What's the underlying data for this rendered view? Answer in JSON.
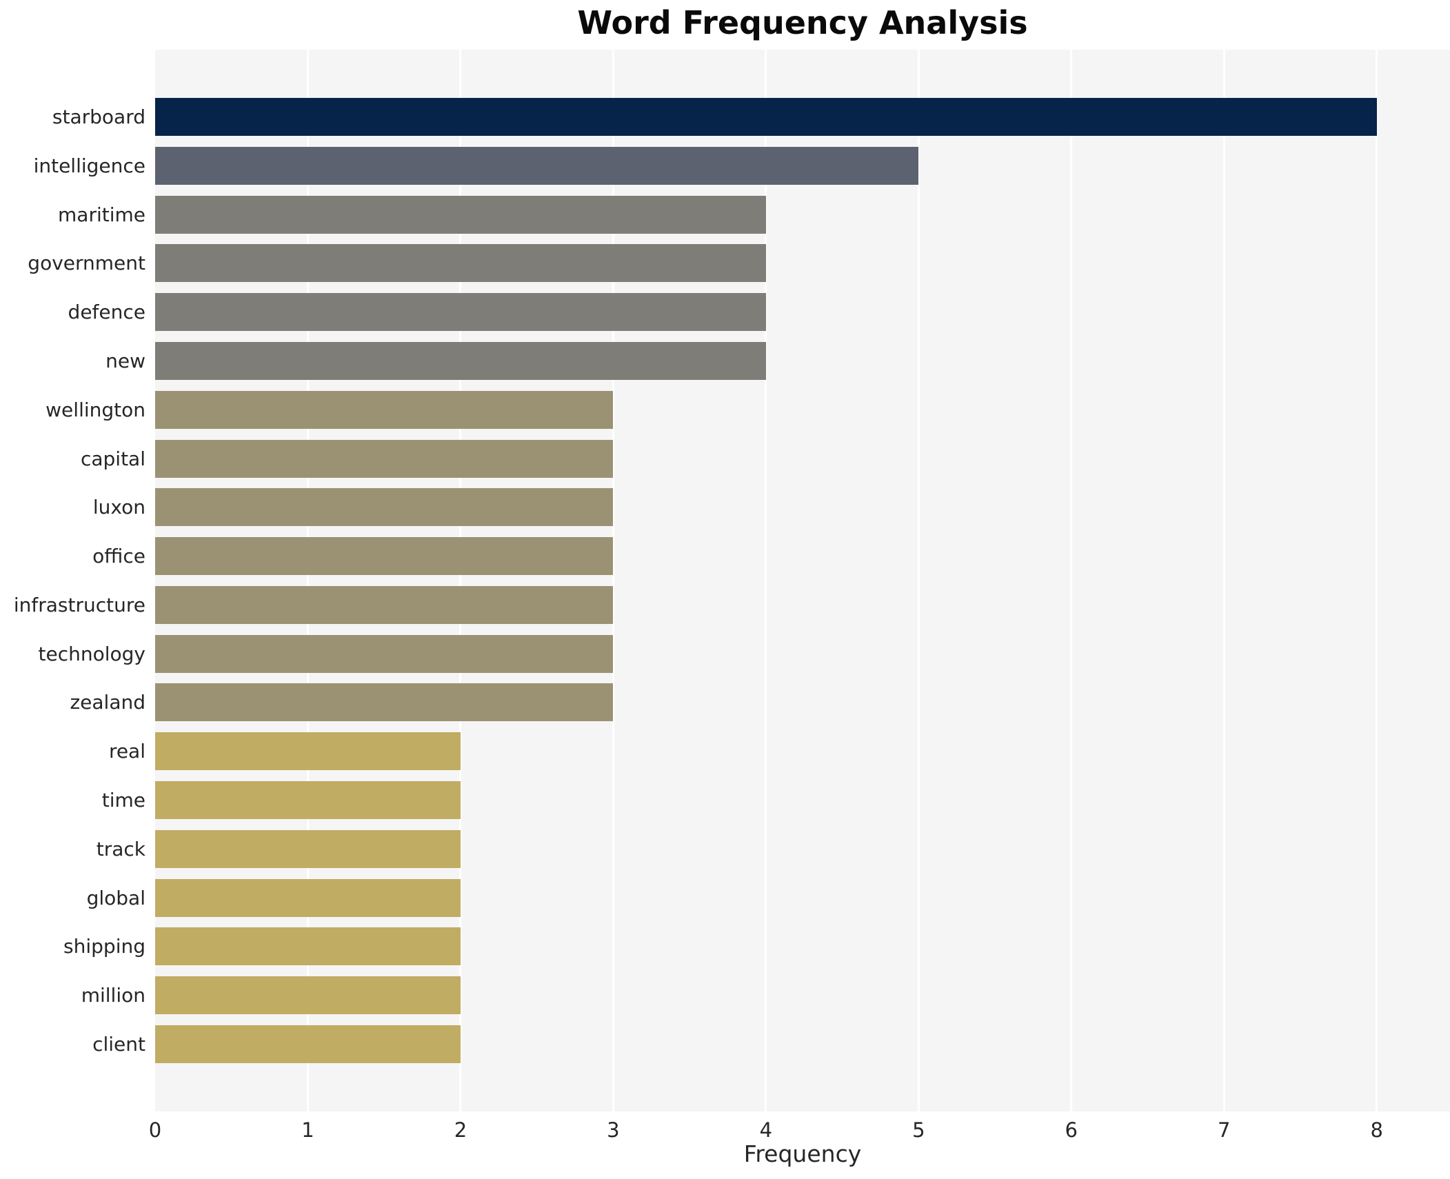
{
  "chart_data": {
    "type": "bar",
    "orientation": "horizontal",
    "title": "Word Frequency Analysis",
    "xlabel": "Frequency",
    "ylabel": "",
    "categories": [
      "starboard",
      "intelligence",
      "maritime",
      "government",
      "defence",
      "new",
      "wellington",
      "capital",
      "luxon",
      "office",
      "infrastructure",
      "technology",
      "zealand",
      "real",
      "time",
      "track",
      "global",
      "shipping",
      "million",
      "client"
    ],
    "values": [
      8,
      5,
      4,
      4,
      4,
      4,
      3,
      3,
      3,
      3,
      3,
      3,
      3,
      2,
      2,
      2,
      2,
      2,
      2,
      2
    ],
    "x_ticks": [
      0,
      1,
      2,
      3,
      4,
      5,
      6,
      7,
      8
    ],
    "xlim": [
      0,
      8.48
    ],
    "grid": true,
    "legend": false,
    "plot_bg_color": "#f5f5f6",
    "grid_color": "#ffffff",
    "colors_by_value": {
      "8": "#06234a",
      "5": "#5d6270",
      "4": "#7e7d78",
      "3": "#9a9272",
      "2": "#c0ac63"
    }
  }
}
